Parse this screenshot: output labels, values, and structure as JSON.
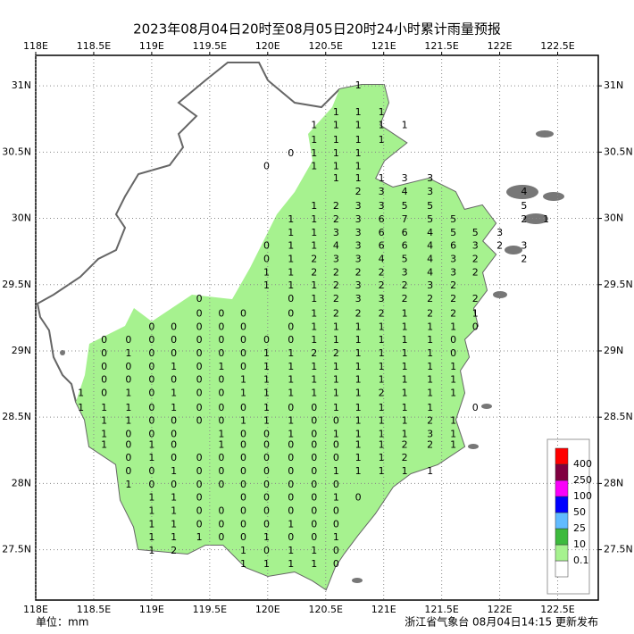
{
  "map": {
    "title": "2023年08月04日20时至08月05日20时24小时累计雨量预报",
    "unit_label": "单位：mm",
    "issuer": "浙江省气象台 08月04日14:15 更新发布",
    "xlim": [
      118,
      122.85
    ],
    "ylim": [
      27.12,
      31.23
    ],
    "xticks": [
      {
        "value": 118,
        "label": "118E"
      },
      {
        "value": 118.5,
        "label": "118.5E"
      },
      {
        "value": 119,
        "label": "119E"
      },
      {
        "value": 119.5,
        "label": "119.5E"
      },
      {
        "value": 120,
        "label": "120E"
      },
      {
        "value": 120.5,
        "label": "120.5E"
      },
      {
        "value": 121,
        "label": "121E"
      },
      {
        "value": 121.5,
        "label": "121.5E"
      },
      {
        "value": 122,
        "label": "122E"
      },
      {
        "value": 122.5,
        "label": "122.5E"
      }
    ],
    "yticks": [
      {
        "value": 27.5,
        "label": "27.5N"
      },
      {
        "value": 28,
        "label": "28N"
      },
      {
        "value": 28.5,
        "label": "28.5N"
      },
      {
        "value": 29,
        "label": "29N"
      },
      {
        "value": 29.5,
        "label": "29.5N"
      },
      {
        "value": 30,
        "label": "30N"
      },
      {
        "value": 30.5,
        "label": "30.5N"
      },
      {
        "value": 31,
        "label": "31N"
      }
    ],
    "grid": true,
    "legend": {
      "levels": [
        0.1,
        10,
        25,
        50,
        100,
        250,
        400
      ],
      "colors": [
        "#ffffff",
        "#a6f28f",
        "#3dba3d",
        "#61bbff",
        "#0000ff",
        "#fa00fa",
        "#800040",
        "#ff0000"
      ]
    },
    "stations": {
      "lons": [
        118.39,
        118.59,
        118.8,
        119.0,
        119.19,
        119.41,
        119.6,
        119.79,
        119.99,
        120.2,
        120.4,
        120.59,
        120.78,
        120.98,
        121.18,
        121.4,
        121.6,
        121.79,
        122.0,
        122.21,
        122.4
      ],
      "rows": [
        {
          "lat": 31.0,
          "values": [
            null,
            null,
            null,
            null,
            null,
            null,
            null,
            null,
            null,
            null,
            null,
            null,
            1,
            null,
            null,
            null,
            null,
            null,
            null,
            null,
            null
          ]
        },
        {
          "lat": 30.8,
          "values": [
            null,
            null,
            null,
            null,
            null,
            null,
            null,
            null,
            null,
            null,
            null,
            1,
            1,
            1,
            null,
            null,
            null,
            null,
            null,
            null,
            null
          ]
        },
        {
          "lat": 30.7,
          "values": [
            null,
            null,
            null,
            null,
            null,
            null,
            null,
            null,
            null,
            null,
            1,
            1,
            1,
            1,
            1,
            null,
            null,
            null,
            null,
            null,
            null
          ]
        },
        {
          "lat": 30.59,
          "values": [
            null,
            null,
            null,
            null,
            null,
            null,
            null,
            null,
            null,
            null,
            1,
            1,
            1,
            1,
            null,
            null,
            null,
            null,
            null,
            null,
            null
          ]
        },
        {
          "lat": 30.49,
          "values": [
            null,
            null,
            null,
            null,
            null,
            null,
            null,
            null,
            null,
            0,
            1,
            1,
            1,
            null,
            null,
            null,
            null,
            null,
            null,
            null,
            null
          ]
        },
        {
          "lat": 30.39,
          "values": [
            null,
            null,
            null,
            null,
            null,
            null,
            null,
            null,
            0,
            null,
            1,
            1,
            1,
            null,
            null,
            null,
            null,
            null,
            null,
            null,
            null
          ]
        },
        {
          "lat": 30.3,
          "values": [
            null,
            null,
            null,
            null,
            null,
            null,
            null,
            null,
            null,
            null,
            null,
            1,
            1,
            1,
            3,
            3,
            null,
            null,
            null,
            null,
            null
          ]
        },
        {
          "lat": 30.2,
          "values": [
            null,
            null,
            null,
            null,
            null,
            null,
            null,
            null,
            null,
            null,
            null,
            null,
            2,
            3,
            4,
            3,
            null,
            null,
            null,
            4,
            null
          ]
        },
        {
          "lat": 30.09,
          "values": [
            null,
            null,
            null,
            null,
            null,
            null,
            null,
            null,
            null,
            null,
            1,
            2,
            3,
            3,
            5,
            5,
            null,
            null,
            null,
            5,
            null
          ]
        },
        {
          "lat": 29.99,
          "values": [
            null,
            null,
            null,
            null,
            null,
            null,
            null,
            null,
            null,
            1,
            1,
            2,
            3,
            6,
            7,
            5,
            5,
            null,
            null,
            2,
            1
          ]
        },
        {
          "lat": 29.89,
          "values": [
            null,
            null,
            null,
            null,
            null,
            null,
            null,
            null,
            null,
            1,
            1,
            3,
            3,
            6,
            6,
            4,
            5,
            5,
            3,
            null,
            null
          ]
        },
        {
          "lat": 29.79,
          "values": [
            null,
            null,
            null,
            null,
            null,
            null,
            null,
            null,
            0,
            1,
            1,
            4,
            3,
            6,
            6,
            4,
            6,
            3,
            2,
            3,
            null
          ]
        },
        {
          "lat": 29.69,
          "values": [
            null,
            null,
            null,
            null,
            null,
            null,
            null,
            null,
            0,
            1,
            2,
            3,
            3,
            4,
            5,
            4,
            3,
            2,
            null,
            2,
            null
          ]
        },
        {
          "lat": 29.59,
          "values": [
            null,
            null,
            null,
            null,
            null,
            null,
            null,
            null,
            1,
            1,
            2,
            2,
            2,
            2,
            3,
            4,
            3,
            2,
            null,
            null,
            null
          ]
        },
        {
          "lat": 29.49,
          "values": [
            null,
            null,
            null,
            null,
            null,
            null,
            null,
            null,
            1,
            1,
            1,
            2,
            3,
            2,
            2,
            3,
            2,
            null,
            null,
            null,
            null
          ]
        },
        {
          "lat": 29.39,
          "values": [
            null,
            null,
            null,
            null,
            null,
            0,
            null,
            null,
            null,
            0,
            1,
            2,
            3,
            3,
            2,
            2,
            2,
            2,
            null,
            null,
            null
          ]
        },
        {
          "lat": 29.28,
          "values": [
            null,
            null,
            null,
            null,
            null,
            0,
            0,
            0,
            null,
            0,
            1,
            2,
            2,
            2,
            1,
            2,
            2,
            1,
            null,
            null,
            null
          ]
        },
        {
          "lat": 29.18,
          "values": [
            null,
            null,
            null,
            0,
            0,
            0,
            0,
            0,
            null,
            0,
            1,
            1,
            1,
            1,
            1,
            1,
            1,
            0,
            null,
            null,
            null
          ]
        },
        {
          "lat": 29.08,
          "values": [
            null,
            0,
            0,
            0,
            0,
            0,
            0,
            0,
            0,
            0,
            1,
            1,
            1,
            1,
            1,
            1,
            0,
            null,
            null,
            null,
            null
          ]
        },
        {
          "lat": 28.98,
          "values": [
            null,
            0,
            1,
            0,
            0,
            0,
            0,
            0,
            1,
            1,
            2,
            2,
            1,
            1,
            1,
            1,
            0,
            null,
            null,
            null,
            null
          ]
        },
        {
          "lat": 28.88,
          "values": [
            null,
            0,
            0,
            0,
            1,
            0,
            1,
            0,
            1,
            1,
            1,
            1,
            1,
            1,
            1,
            1,
            1,
            null,
            null,
            null,
            null
          ]
        },
        {
          "lat": 28.78,
          "values": [
            null,
            0,
            0,
            0,
            0,
            0,
            0,
            1,
            1,
            1,
            1,
            1,
            1,
            1,
            1,
            1,
            1,
            null,
            null,
            null,
            null
          ]
        },
        {
          "lat": 28.68,
          "values": [
            1,
            0,
            1,
            0,
            1,
            0,
            0,
            1,
            1,
            1,
            1,
            1,
            1,
            2,
            1,
            1,
            1,
            null,
            null,
            null,
            null
          ]
        },
        {
          "lat": 28.57,
          "values": [
            1,
            1,
            1,
            0,
            1,
            0,
            0,
            0,
            1,
            0,
            0,
            1,
            1,
            1,
            1,
            1,
            null,
            0,
            null,
            null,
            null
          ]
        },
        {
          "lat": 28.47,
          "values": [
            null,
            1,
            1,
            0,
            0,
            0,
            0,
            1,
            1,
            1,
            0,
            0,
            1,
            1,
            1,
            2,
            1,
            null,
            null,
            null,
            null
          ]
        },
        {
          "lat": 28.37,
          "values": [
            null,
            1,
            0,
            0,
            0,
            null,
            1,
            0,
            0,
            1,
            0,
            1,
            1,
            1,
            1,
            3,
            1,
            null,
            null,
            null,
            null
          ]
        },
        {
          "lat": 28.29,
          "values": [
            null,
            1,
            0,
            1,
            0,
            null,
            1,
            0,
            0,
            0,
            0,
            0,
            1,
            1,
            2,
            2,
            1,
            null,
            null,
            null,
            null
          ]
        },
        {
          "lat": 28.19,
          "values": [
            null,
            null,
            0,
            1,
            0,
            0,
            0,
            0,
            0,
            0,
            0,
            0,
            1,
            1,
            2,
            null,
            null,
            null,
            null,
            null,
            null
          ]
        },
        {
          "lat": 28.09,
          "values": [
            null,
            null,
            0,
            0,
            1,
            0,
            0,
            0,
            0,
            0,
            0,
            1,
            1,
            1,
            1,
            1,
            null,
            null,
            null,
            null,
            null
          ]
        },
        {
          "lat": 27.99,
          "values": [
            null,
            null,
            1,
            0,
            0,
            0,
            0,
            0,
            0,
            0,
            0,
            0,
            null,
            null,
            null,
            null,
            null,
            null,
            null,
            null,
            null
          ]
        },
        {
          "lat": 27.89,
          "values": [
            null,
            null,
            null,
            1,
            1,
            0,
            null,
            0,
            0,
            0,
            0,
            1,
            0,
            null,
            null,
            null,
            null,
            null,
            null,
            null,
            null
          ]
        },
        {
          "lat": 27.79,
          "values": [
            null,
            null,
            null,
            1,
            1,
            0,
            0,
            0,
            0,
            0,
            0,
            0,
            null,
            null,
            null,
            null,
            null,
            null,
            null,
            null,
            null
          ]
        },
        {
          "lat": 27.69,
          "values": [
            null,
            null,
            null,
            1,
            1,
            0,
            0,
            0,
            0,
            1,
            0,
            0,
            null,
            null,
            null,
            null,
            null,
            null,
            null,
            null,
            null
          ]
        },
        {
          "lat": 27.59,
          "values": [
            null,
            null,
            null,
            1,
            1,
            1,
            0,
            0,
            1,
            0,
            0,
            1,
            null,
            null,
            null,
            null,
            null,
            null,
            null,
            null,
            null
          ]
        },
        {
          "lat": 27.49,
          "values": [
            null,
            null,
            null,
            1,
            2,
            null,
            null,
            1,
            0,
            1,
            1,
            0,
            null,
            null,
            null,
            null,
            null,
            null,
            null,
            null,
            null
          ]
        },
        {
          "lat": 27.39,
          "values": [
            null,
            null,
            null,
            null,
            null,
            null,
            null,
            1,
            1,
            1,
            1,
            0,
            null,
            null,
            null,
            null,
            null,
            null,
            null,
            null,
            null
          ]
        }
      ]
    }
  }
}
